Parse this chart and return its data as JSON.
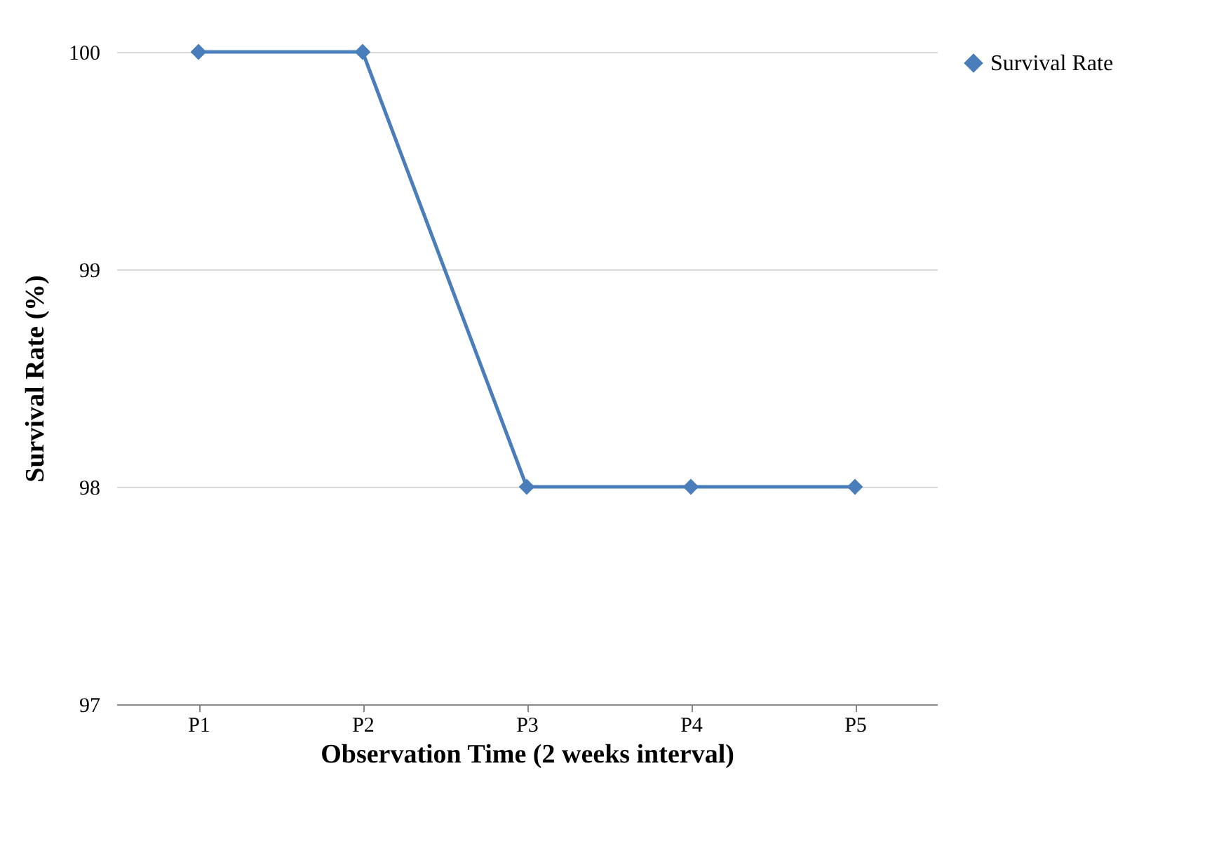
{
  "chart_data": {
    "type": "line",
    "xlabel": "Observation Time (2 weeks interval)",
    "ylabel": "Survival Rate (%)",
    "categories": [
      "P1",
      "P2",
      "P3",
      "P4",
      "P5"
    ],
    "series": [
      {
        "name": "Survival Rate",
        "color": "#4a7ebb",
        "values": [
          100,
          100,
          98,
          98,
          98
        ]
      }
    ],
    "ylim": [
      97,
      100
    ],
    "yticks": [
      97,
      98,
      99,
      100
    ],
    "grid": "y",
    "legend": "right",
    "marker": "diamond",
    "line_style": "solid"
  }
}
